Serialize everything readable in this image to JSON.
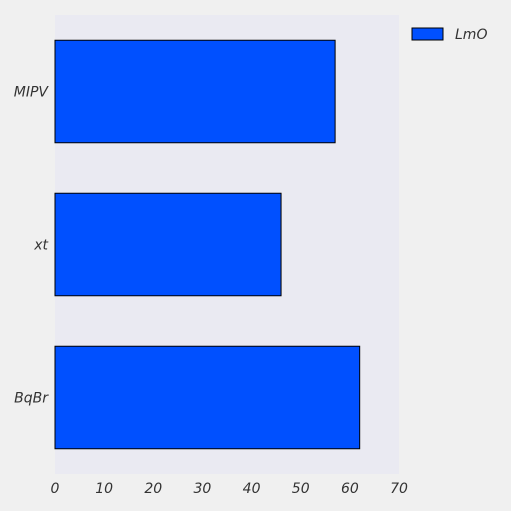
{
  "chart_data": {
    "type": "bar",
    "orientation": "horizontal",
    "categories": [
      "MIPV",
      "xt",
      "BqBr"
    ],
    "series": [
      {
        "name": "LmO",
        "values": [
          57,
          46,
          62
        ],
        "color": "#0050ff"
      }
    ],
    "xlim": [
      0,
      70
    ],
    "xticks": [
      0,
      10,
      20,
      30,
      40,
      50,
      60,
      70
    ],
    "legend_position": "top-right-outside",
    "plot_background": "#eaeaf2",
    "page_background": "#f0f0f0",
    "grid": false
  }
}
